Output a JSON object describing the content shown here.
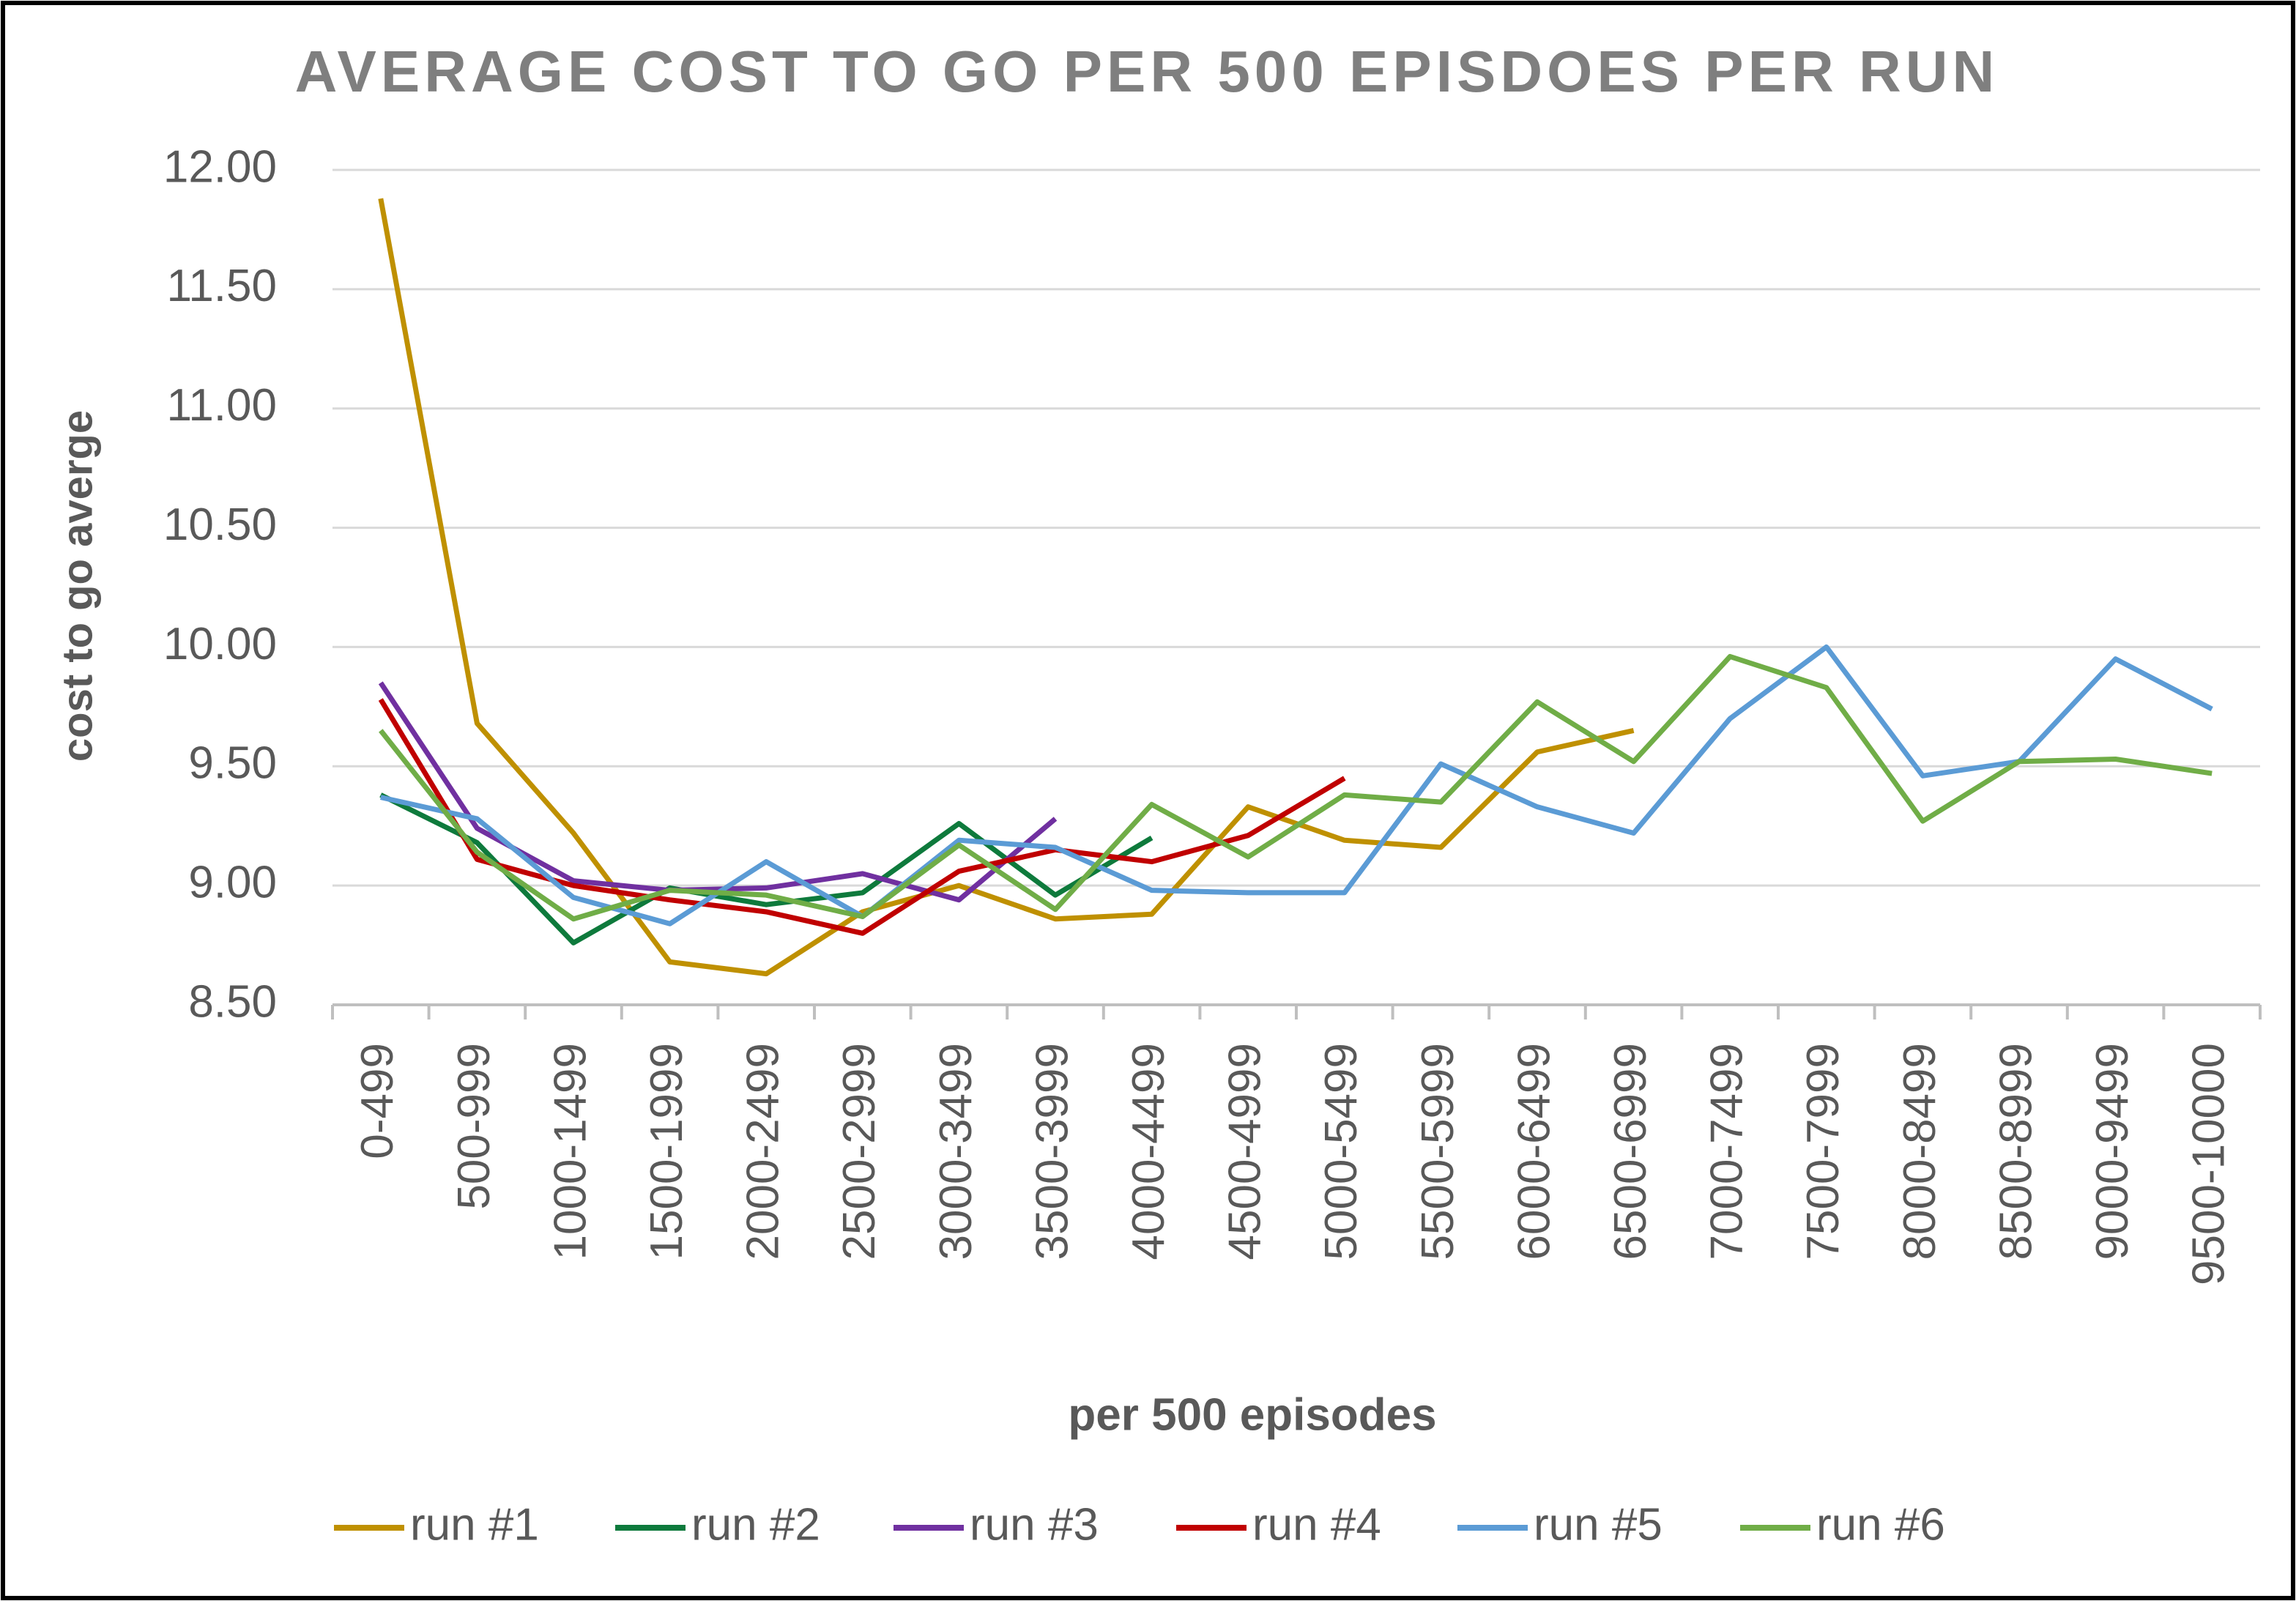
{
  "chart_data": {
    "type": "line",
    "title": "AVERAGE COST TO GO PER 500 EPISDOES PER RUN",
    "x_label": "per 500 episodes",
    "y_label": "cost to go averge",
    "categories": [
      "0-499",
      "500-999",
      "1000-1499",
      "1500-1999",
      "2000-2499",
      "2500-2999",
      "3000-3499",
      "3500-3999",
      "4000-4499",
      "4500-4999",
      "5000-5499",
      "5500-5999",
      "6000-6499",
      "6500-6999",
      "7000-7499",
      "7500-7999",
      "8000-8499",
      "8500-8999",
      "9000-9499",
      "9500-10000"
    ],
    "series": [
      {
        "name": "run #1",
        "color": "#bf9000",
        "values": [
          11.88,
          9.68,
          9.22,
          8.68,
          8.63,
          8.89,
          9.0,
          8.86,
          8.88,
          9.33,
          9.19,
          9.16,
          9.56,
          9.65,
          null,
          null,
          null,
          null,
          null,
          null
        ]
      },
      {
        "name": "run #2",
        "color": "#0e7a3c",
        "values": [
          9.38,
          9.18,
          8.76,
          8.99,
          8.92,
          8.97,
          9.26,
          8.96,
          9.2,
          null,
          null,
          null,
          null,
          null,
          null,
          null,
          null,
          null,
          null,
          null
        ]
      },
      {
        "name": "run #3",
        "color": "#7030a0",
        "values": [
          9.85,
          9.24,
          9.02,
          8.98,
          8.99,
          9.05,
          8.94,
          9.28,
          null,
          null,
          null,
          null,
          null,
          null,
          null,
          null,
          null,
          null,
          null,
          null
        ]
      },
      {
        "name": "run #4",
        "color": "#c00000",
        "values": [
          9.78,
          9.11,
          9.0,
          8.94,
          8.89,
          8.8,
          9.06,
          9.15,
          9.1,
          9.21,
          9.45,
          null,
          null,
          null,
          null,
          null,
          null,
          null,
          null,
          null
        ]
      },
      {
        "name": "run #5",
        "color": "#5b9bd5",
        "values": [
          9.37,
          9.28,
          8.95,
          8.84,
          9.1,
          8.87,
          9.19,
          9.16,
          8.98,
          8.97,
          8.97,
          9.51,
          9.33,
          9.22,
          9.7,
          10.0,
          9.46,
          9.52,
          9.95,
          9.74
        ]
      },
      {
        "name": "run #6",
        "color": "#70ad47",
        "values": [
          9.65,
          9.14,
          8.86,
          8.98,
          8.96,
          8.87,
          9.17,
          8.9,
          9.34,
          9.12,
          9.38,
          9.35,
          9.77,
          9.52,
          9.96,
          9.83,
          9.27,
          9.52,
          9.53,
          9.47
        ]
      }
    ],
    "ylim": [
      8.5,
      12
    ],
    "yticks": [
      {
        "value": 8.5,
        "label": "8.50"
      },
      {
        "value": 9,
        "label": "9.00"
      },
      {
        "value": 9.5,
        "label": "9.50"
      },
      {
        "value": 10,
        "label": "10.00"
      },
      {
        "value": 10.5,
        "label": "10.50"
      },
      {
        "value": 11,
        "label": "11.00"
      },
      {
        "value": 11.5,
        "label": "11.50"
      },
      {
        "value": 12,
        "label": "12.00"
      }
    ],
    "grid": true,
    "legend": "bottom"
  }
}
